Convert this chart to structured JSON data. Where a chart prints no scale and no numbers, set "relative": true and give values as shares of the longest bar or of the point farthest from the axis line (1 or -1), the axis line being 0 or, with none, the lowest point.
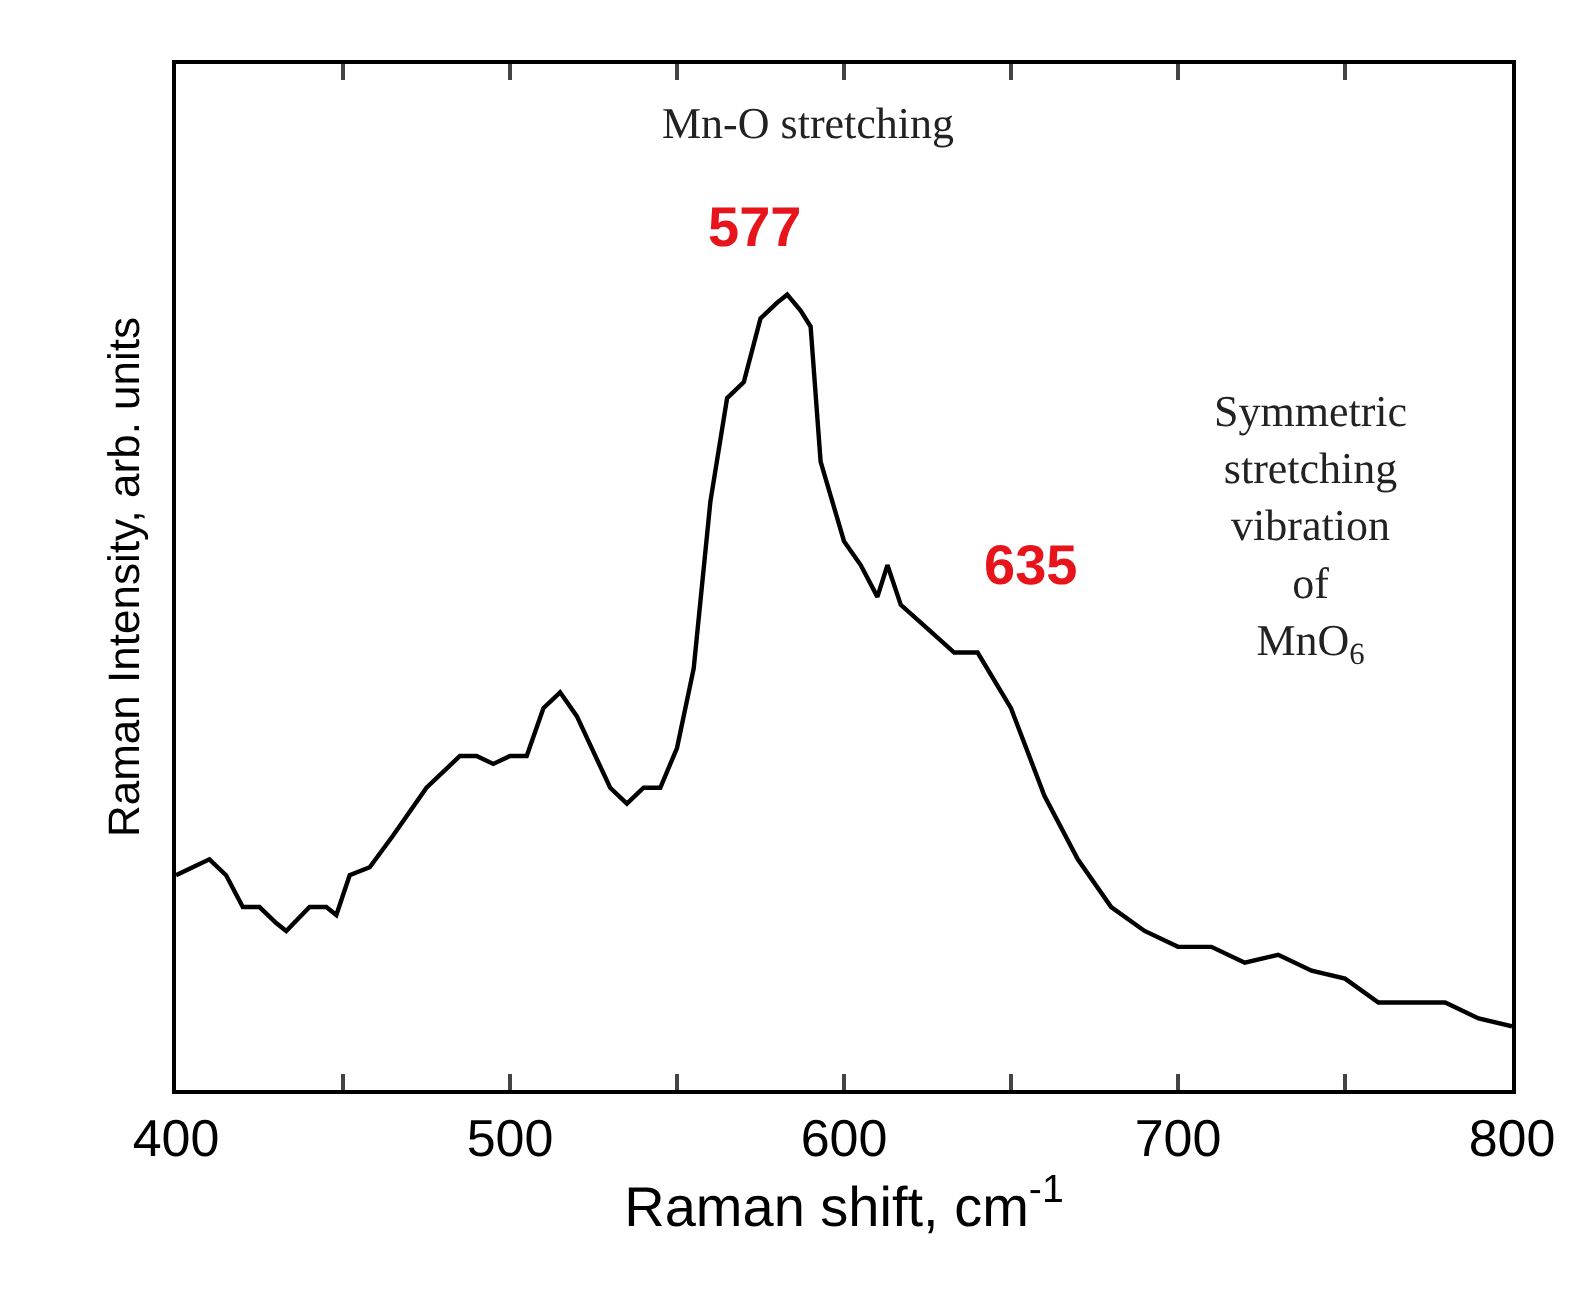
{
  "chart_data": {
    "type": "line",
    "relative": true,
    "xlabel": "Raman shift, cm$^{-1}$",
    "ylabel": "Raman Intensity, arb. units",
    "x": [
      400,
      405,
      410,
      415,
      420,
      425,
      430,
      433,
      440,
      445,
      448,
      452,
      458,
      465,
      475,
      485,
      490,
      495,
      500,
      505,
      510,
      515,
      520,
      530,
      535,
      540,
      545,
      550,
      555,
      560,
      565,
      570,
      575,
      580,
      583,
      587,
      590,
      593,
      600,
      605,
      610,
      613,
      617,
      625,
      633,
      640,
      650,
      660,
      670,
      680,
      690,
      700,
      710,
      720,
      730,
      740,
      750,
      760,
      770,
      780,
      790,
      800
    ],
    "series": [
      {
        "color": "#000000",
        "values": [
          0.27,
          0.28,
          0.29,
          0.27,
          0.23,
          0.23,
          0.21,
          0.2,
          0.23,
          0.23,
          0.22,
          0.27,
          0.28,
          0.32,
          0.38,
          0.42,
          0.42,
          0.41,
          0.42,
          0.42,
          0.48,
          0.5,
          0.47,
          0.38,
          0.36,
          0.38,
          0.38,
          0.43,
          0.53,
          0.74,
          0.87,
          0.89,
          0.97,
          0.99,
          1.0,
          0.98,
          0.96,
          0.79,
          0.69,
          0.66,
          0.62,
          0.66,
          0.61,
          0.58,
          0.55,
          0.55,
          0.48,
          0.37,
          0.29,
          0.23,
          0.2,
          0.18,
          0.18,
          0.16,
          0.17,
          0.15,
          0.14,
          0.11,
          0.11,
          0.11,
          0.09,
          0.08
        ]
      }
    ],
    "xlim": [
      400,
      800
    ],
    "xticks": [
      400,
      {
        "value": 450,
        "label": null
      },
      500,
      {
        "value": 550,
        "label": null
      },
      600,
      {
        "value": 650,
        "label": null
      },
      700,
      {
        "value": 750,
        "label": null
      },
      800
    ],
    "grid": false,
    "marker": "none",
    "line_style": "solid",
    "annotations": [
      "Mn-O stretching",
      "577",
      "635",
      "Symmetric\nstretching\nvibration\nof\nMnO$_{6}$"
    ]
  }
}
